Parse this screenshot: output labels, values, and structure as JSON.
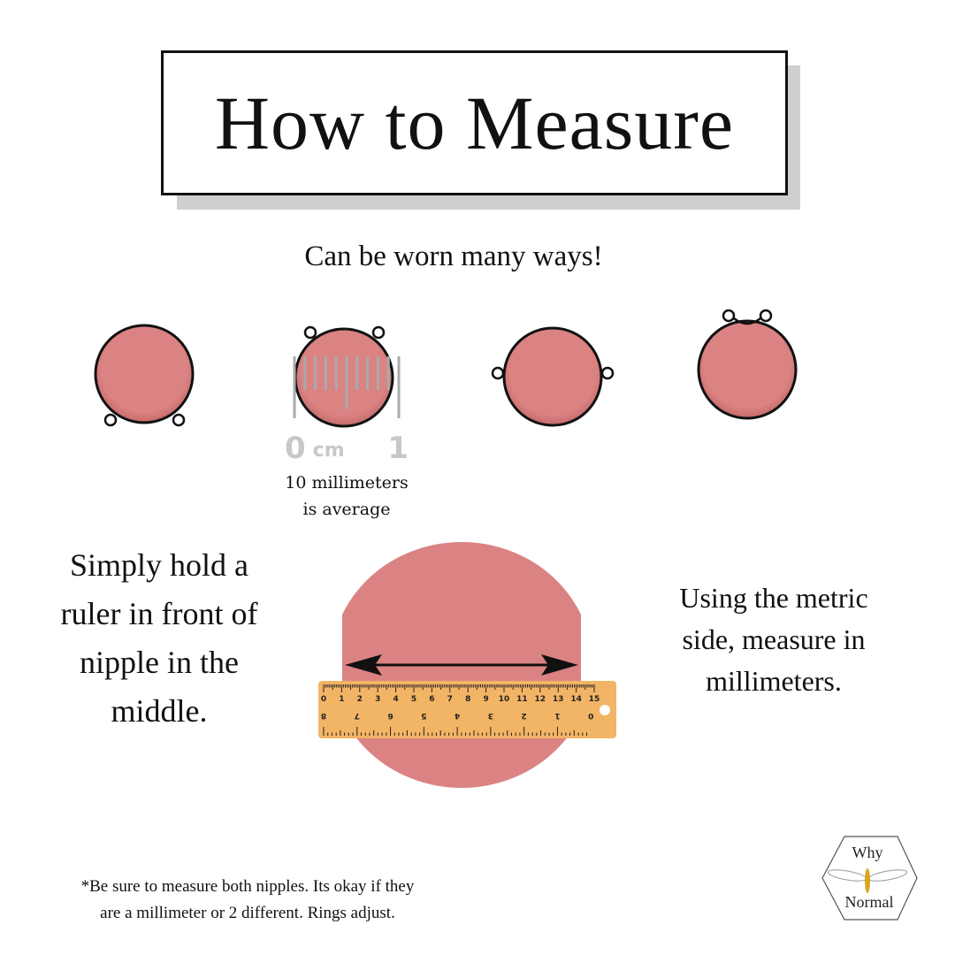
{
  "title": "How to Measure",
  "subtitle": "Can be worn many ways!",
  "ways": [
    "rings-bottom",
    "rings-top-sides",
    "rings-sides",
    "rings-top"
  ],
  "scale": {
    "zero": "0",
    "unit": "cm",
    "one": "1"
  },
  "average_caption": {
    "line1": "10 millimeters",
    "line2": "is average"
  },
  "left_text": [
    "Simply hold a",
    "ruler in front of",
    "nipple in the",
    "middle."
  ],
  "right_text": [
    "Using the metric",
    "side, measure in",
    "millimeters."
  ],
  "ruler": {
    "top_numbers": [
      "0",
      "1",
      "2",
      "3",
      "4",
      "5",
      "6",
      "7",
      "8",
      "9",
      "10",
      "11",
      "12",
      "13",
      "14",
      "15"
    ],
    "bottom_numbers": [
      "8",
      "7",
      "6",
      "5",
      "4",
      "3",
      "2",
      "1",
      "0"
    ]
  },
  "footnote": {
    "line1": "*Be sure to measure both nipples. Its okay if they",
    "line2": "are a millimeter or 2 different. Rings adjust."
  },
  "logo": {
    "top": "Why",
    "middle": "Bee",
    "bottom": "Normal"
  },
  "colors": {
    "nipple": "#db8383",
    "ruler": "#f2b465",
    "shadow": "#cfcfcf"
  }
}
